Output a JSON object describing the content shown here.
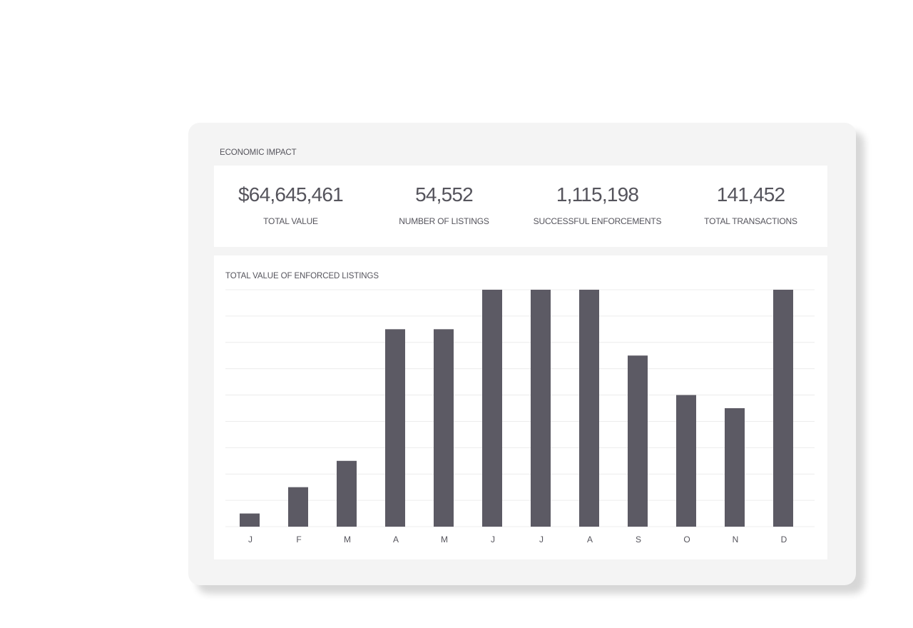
{
  "header": {
    "title": "ECONOMIC IMPACT"
  },
  "stats": [
    {
      "value": "$64,645,461",
      "label": "TOTAL VALUE"
    },
    {
      "value": "54,552",
      "label": "NUMBER OF LISTINGS"
    },
    {
      "value": "1,115,198",
      "label": "SUCCESSFUL ENFORCEMENTS"
    },
    {
      "value": "141,452",
      "label": "TOTAL TRANSACTIONS"
    }
  ],
  "chart_data": {
    "type": "bar",
    "title": "TOTAL VALUE OF ENFORCED LISTINGS",
    "categories": [
      "J",
      "F",
      "M",
      "A",
      "M",
      "J",
      "J",
      "A",
      "S",
      "O",
      "N",
      "D"
    ],
    "values": [
      0.5,
      1.5,
      2.5,
      7.5,
      7.5,
      9,
      9,
      9,
      6.5,
      5,
      4.5,
      9
    ],
    "ylim": [
      0,
      9
    ],
    "grid": true,
    "bar_color": "#5c5a64",
    "grid_color": "#ececec"
  }
}
